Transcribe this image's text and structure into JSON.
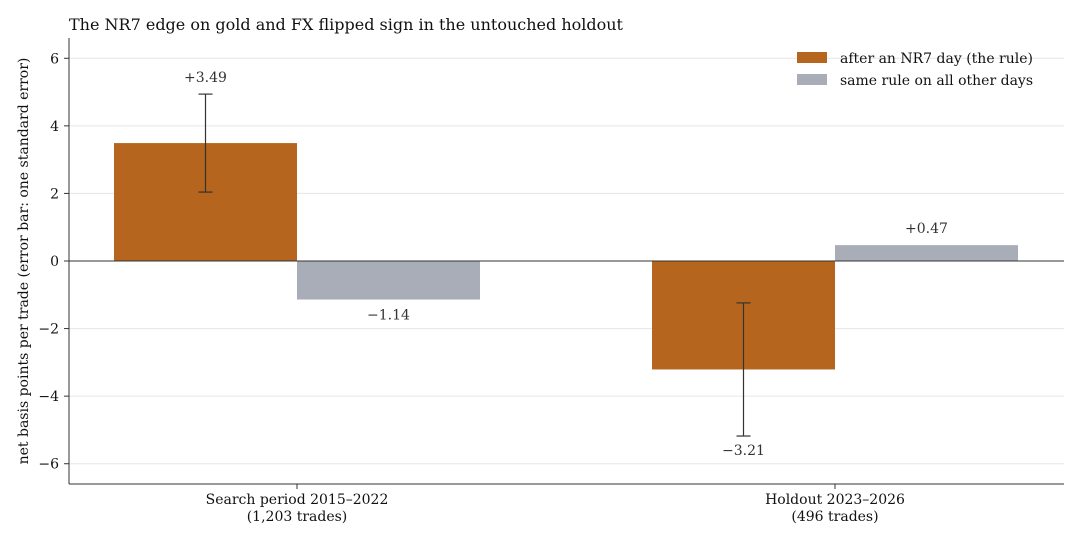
{
  "chart_data": {
    "type": "bar",
    "title": "The NR7 edge on gold and FX flipped sign in the untouched holdout",
    "xlabel": "",
    "ylabel": "net basis points per trade (error bar: one standard error)",
    "ylim": [
      -6.6,
      6.6
    ],
    "yticks": [
      6,
      4,
      2,
      0,
      -2,
      -4,
      -6
    ],
    "ytick_labels": [
      "6",
      "4",
      "2",
      "0",
      "−2",
      "−4",
      "−6"
    ],
    "grid": true,
    "legend_position": "top-right",
    "categories": [
      {
        "line1": "Search period 2015–2022",
        "line2": "(1,203 trades)"
      },
      {
        "line1": "Holdout 2023–2026",
        "line2": "(496 trades)"
      }
    ],
    "series": [
      {
        "name": "after an NR7 day (the rule)",
        "color": "#b5651d",
        "values": [
          3.49,
          -3.21
        ],
        "value_labels": [
          "+3.49",
          "−3.21"
        ],
        "error": [
          1.45,
          1.97
        ]
      },
      {
        "name": "same rule on all other days",
        "color": "#a9adb7",
        "values": [
          -1.14,
          0.47
        ],
        "value_labels": [
          "−1.14",
          "+0.47"
        ],
        "error": null
      }
    ]
  }
}
